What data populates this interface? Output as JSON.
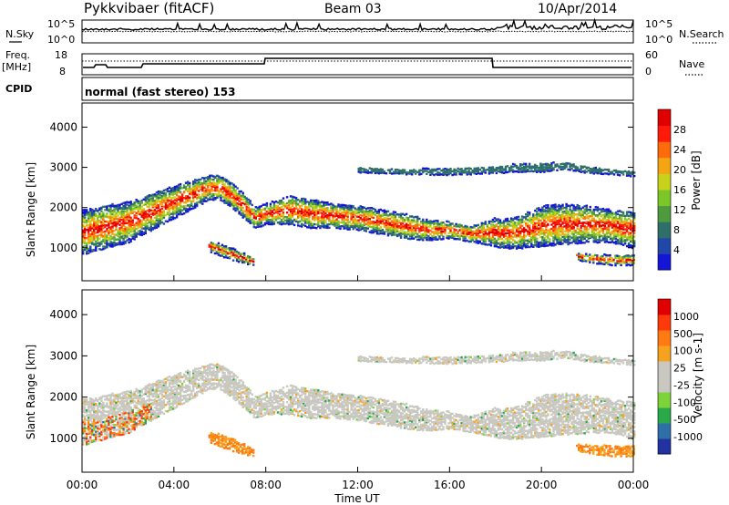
{
  "header": {
    "station": "Pykkvibaer (fitACF)",
    "beam": "Beam 03",
    "date": "10/Apr/2014"
  },
  "strips": {
    "noise_left_label": "N.Sky",
    "noise_right_label": "N.Search",
    "noise_left_ticks": [
      "10^5",
      "10^0"
    ],
    "noise_right_ticks": [
      "10^5",
      "10^0"
    ],
    "freq_label_1": "Freq.",
    "freq_label_2": "[MHz]",
    "freq_ticks": [
      "18",
      "8"
    ],
    "nave_label": "Nave",
    "nave_ticks": [
      "60",
      "0"
    ],
    "cpid_label": "CPID",
    "cpid_text": "normal (fast stereo) 153"
  },
  "chart_data": [
    {
      "type": "heatmap",
      "panel": "power",
      "ylabel": "Slant Range [km]",
      "ylim": [
        180,
        4600
      ],
      "yticks": [
        "1000",
        "2000",
        "3000",
        "4000"
      ],
      "xlim": [
        "00:00",
        "24:00"
      ],
      "colorbar_label": "Power [dB]",
      "colorbar_ticks": [
        "4",
        "8",
        "12",
        "16",
        "20",
        "24",
        "28"
      ],
      "colorbar_colors": [
        "#1515d8",
        "#2147a8",
        "#2f6f6a",
        "#4e9a3e",
        "#7cc62a",
        "#c8d21a",
        "#f3a512",
        "#ff6a0a",
        "#ff1a0a",
        "#e00000"
      ],
      "bands": [
        {
          "name": "main-echo",
          "t": [
            0,
            2,
            4,
            5.5,
            6,
            6.5,
            7,
            7.5,
            8,
            9,
            10,
            11,
            12,
            13,
            14,
            15,
            16,
            17,
            18,
            18.2,
            19,
            20,
            21,
            22,
            23,
            24
          ],
          "center": [
            1400,
            1650,
            2150,
            2500,
            2500,
            2300,
            2050,
            1750,
            1850,
            1950,
            1850,
            1800,
            1750,
            1650,
            1550,
            1450,
            1450,
            1350,
            1400,
            1350,
            1400,
            1550,
            1600,
            1600,
            1550,
            1450
          ],
          "halfwidth": [
            550,
            500,
            400,
            300,
            300,
            300,
            300,
            250,
            250,
            350,
            350,
            300,
            300,
            300,
            300,
            250,
            200,
            200,
            350,
            350,
            400,
            500,
            500,
            450,
            400,
            450
          ]
        },
        {
          "name": "upper-echo",
          "t": [
            12,
            14,
            16,
            18,
            19,
            20,
            21,
            22,
            23,
            24
          ],
          "center": [
            2950,
            2900,
            2900,
            2950,
            3000,
            3000,
            3050,
            2950,
            2900,
            2850
          ],
          "halfwidth": [
            60,
            60,
            80,
            80,
            100,
            100,
            80,
            80,
            60,
            60
          ]
        },
        {
          "name": "low-echo",
          "t": [
            5.5,
            6,
            6.5,
            7,
            7.5
          ],
          "center": [
            1050,
            950,
            850,
            750,
            650
          ],
          "halfwidth": [
            120,
            140,
            140,
            120,
            80
          ]
        },
        {
          "name": "late-low-echo",
          "t": [
            21.5,
            22,
            23,
            24
          ],
          "center": [
            800,
            750,
            700,
            700
          ],
          "halfwidth": [
            80,
            100,
            120,
            120
          ]
        }
      ]
    },
    {
      "type": "heatmap",
      "panel": "velocity",
      "ylabel": "Slant Range [km]",
      "ylim": [
        180,
        4600
      ],
      "yticks": [
        "1000",
        "2000",
        "3000",
        "4000"
      ],
      "xlim": [
        "00:00",
        "24:00"
      ],
      "xticks": [
        "00:00",
        "04:00",
        "08:00",
        "12:00",
        "16:00",
        "20:00",
        "00:00"
      ],
      "xlabel": "Time UT",
      "colorbar_label": "Velocity [m s-1]",
      "colorbar_ticks": [
        "1000",
        "500",
        "100",
        "25",
        "-25",
        "-100",
        "-500",
        "-1000"
      ],
      "colorbar_colors": [
        "#2233a0",
        "#2f6fa8",
        "#2aa84a",
        "#7cd43a",
        "#c8c8c0",
        "#c8c8c0",
        "#f6a21e",
        "#ff7a12",
        "#ff3a0a",
        "#e00000"
      ]
    }
  ]
}
